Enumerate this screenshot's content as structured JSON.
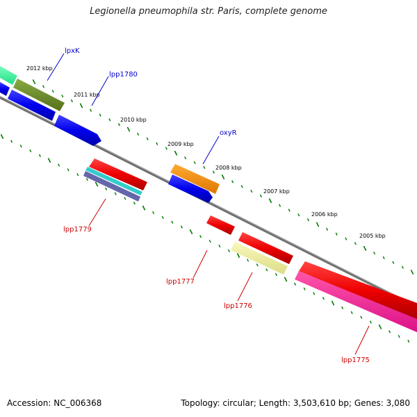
{
  "title": "Legionella pneumophila str. Paris, complete genome",
  "footer": {
    "accession": "Accession: NC_006368",
    "summary": "Topology: circular; Length: 3,503,610 bp; Genes: 3,080"
  },
  "scale_labels": [
    "2012 kbp",
    "2011 kbp",
    "2010 kbp",
    "2009 kbp",
    "2008 kbp",
    "2007 kbp",
    "2006 kbp",
    "2005 kbp"
  ],
  "gene_labels": [
    {
      "text": "lpxK",
      "color": "#0000cc"
    },
    {
      "text": "lpp1780",
      "color": "#0000cc"
    },
    {
      "text": "oxyR",
      "color": "#0000cc"
    },
    {
      "text": "lpp1779",
      "color": "#cc0000"
    },
    {
      "text": "lpp1777",
      "color": "#cc0000"
    },
    {
      "text": "lpp1776",
      "color": "#cc0000"
    },
    {
      "text": "lpp1775",
      "color": "#cc0000"
    }
  ],
  "colors": {
    "backbone": "#808080",
    "tick": "#007700",
    "blue": "#0000ee",
    "red": "#ee0000",
    "olive": "#6b8e23",
    "mint": "#33ff99",
    "orange": "#ff8800",
    "pale_yellow": "#eeee99",
    "pink": "#ff1493",
    "cyan": "#33cccc",
    "slate": "#6666aa"
  }
}
